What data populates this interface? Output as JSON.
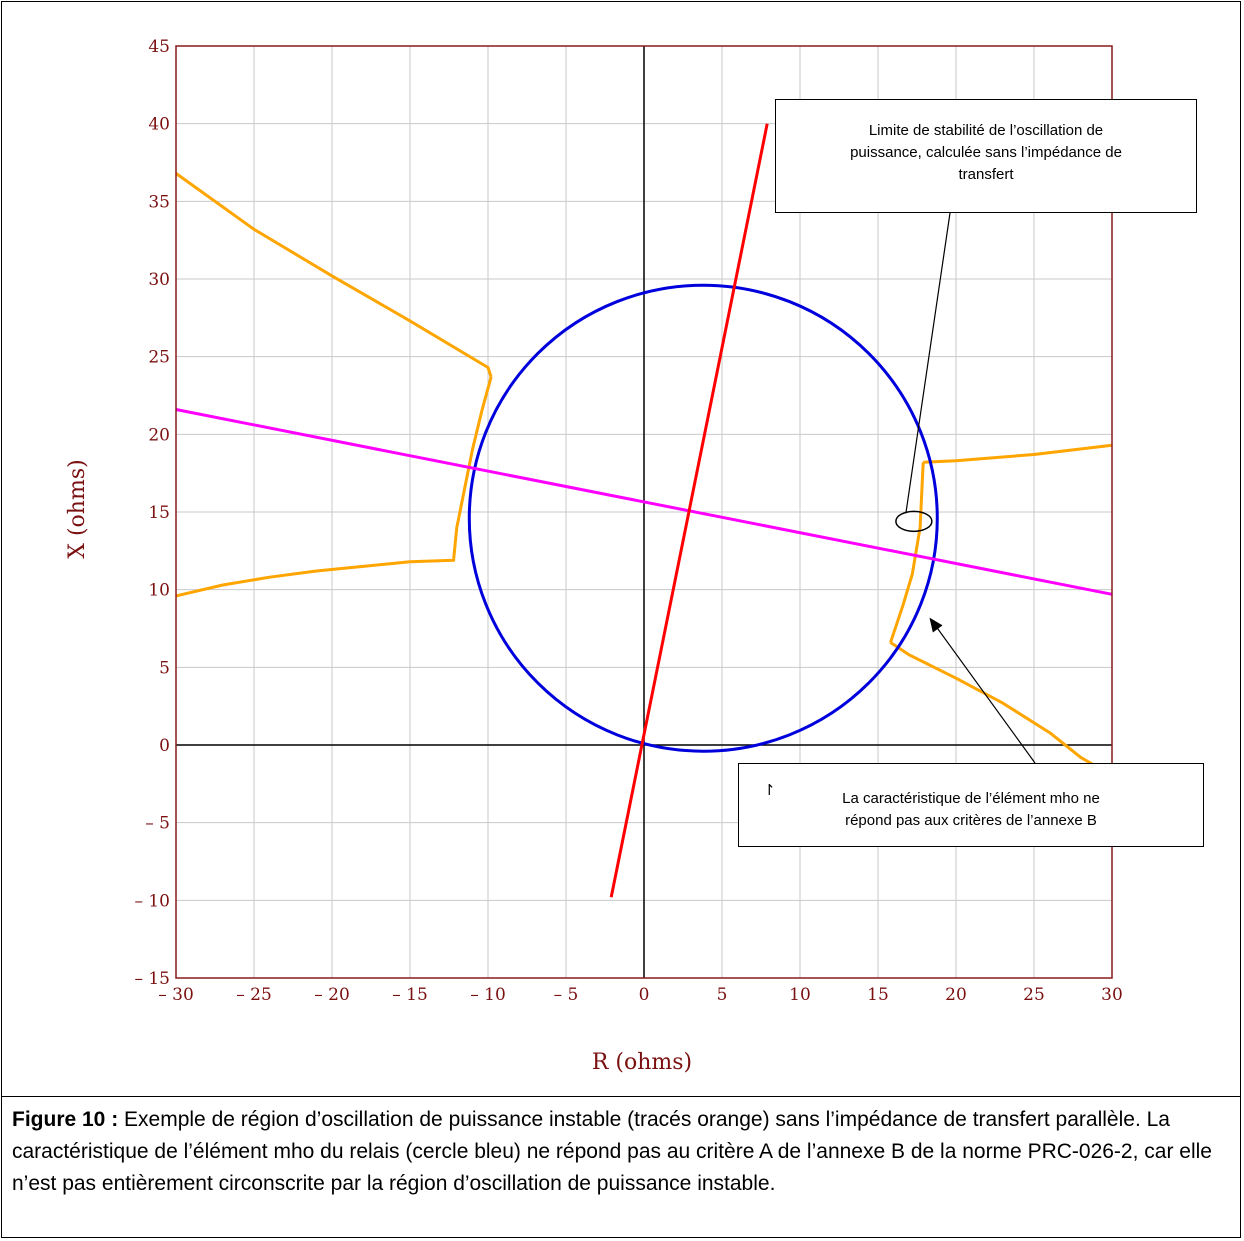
{
  "colors": {
    "plot_border": "#8b1a1a",
    "grid": "#c8c8c8",
    "axis_text": "#7a1010",
    "orange": "#ffa500",
    "blue": "#0000dd",
    "magenta": "#ff00ff",
    "red": "#ff0000"
  },
  "chart_data": {
    "type": "line",
    "xlabel": "R (ohms)",
    "ylabel": "X (ohms)",
    "xlim": [
      -30,
      30
    ],
    "ylim": [
      -15,
      45
    ],
    "xticks": [
      "– 30",
      "– 25",
      "– 20",
      "– 15",
      "– 10",
      "– 5",
      "0",
      "5",
      "10",
      "15",
      "20",
      "25",
      "30"
    ],
    "yticks": [
      "– 15",
      "– 10",
      "– 5",
      "0",
      "5",
      "10",
      "15",
      "20",
      "25",
      "30",
      "35",
      "40",
      "45"
    ],
    "grid": true,
    "series": [
      {
        "color": "orange",
        "kind": "line",
        "points": [
          [
            -30,
            36.8
          ],
          [
            -25,
            33.2
          ],
          [
            -20,
            30.2
          ],
          [
            -15,
            27.3
          ],
          [
            -10,
            24.3
          ],
          [
            -9.8,
            23.7
          ]
        ]
      },
      {
        "color": "orange",
        "kind": "line",
        "points": [
          [
            -9.8,
            23.7
          ],
          [
            -10.4,
            21.5
          ],
          [
            -11.0,
            19.0
          ],
          [
            -11.5,
            16.5
          ],
          [
            -12.0,
            14.0
          ],
          [
            -12.2,
            12.0
          ]
        ]
      },
      {
        "color": "orange",
        "kind": "line",
        "points": [
          [
            -30,
            9.6
          ],
          [
            -27,
            10.3
          ],
          [
            -24,
            10.8
          ],
          [
            -21,
            11.2
          ],
          [
            -18,
            11.5
          ],
          [
            -15,
            11.8
          ],
          [
            -12.2,
            11.9
          ],
          [
            -12.2,
            12.0
          ]
        ]
      },
      {
        "color": "orange",
        "kind": "line",
        "points": [
          [
            17.9,
            18.2
          ],
          [
            20,
            18.3
          ],
          [
            25,
            18.7
          ],
          [
            30,
            19.3
          ]
        ]
      },
      {
        "color": "orange",
        "kind": "line",
        "points": [
          [
            17.9,
            18.2
          ],
          [
            17.7,
            14.0
          ],
          [
            17.2,
            11.0
          ],
          [
            16.6,
            9.0
          ],
          [
            15.8,
            6.6
          ]
        ]
      },
      {
        "color": "orange",
        "kind": "line",
        "points": [
          [
            15.8,
            6.6
          ],
          [
            17,
            5.8
          ],
          [
            20,
            4.3
          ],
          [
            23,
            2.7
          ],
          [
            26,
            0.8
          ],
          [
            28,
            -0.8
          ],
          [
            29.2,
            -1.5
          ]
        ]
      },
      {
        "color": "blue",
        "kind": "circle",
        "center": [
          3.8,
          14.6
        ],
        "radius": 15.0
      },
      {
        "color": "magenta",
        "kind": "line",
        "points": [
          [
            -30,
            21.6
          ],
          [
            30,
            9.7
          ]
        ]
      },
      {
        "color": "red",
        "kind": "line",
        "points": [
          [
            -2.1,
            -9.8
          ],
          [
            7.9,
            40.0
          ]
        ]
      }
    ],
    "annotations": [
      {
        "id": "top",
        "target": [
          17.3,
          14.4
        ],
        "ellipse": true
      },
      {
        "id": "bottom",
        "target": [
          18.3,
          8.2
        ]
      }
    ]
  },
  "annotations": {
    "top_text_1": "Limite de stabilité de l’oscillation de",
    "top_text_2": "puissance, calculée sans l’impédance de",
    "top_text_3": "transfert",
    "bottom_text_1": "La caractéristique de l’élément mho ne",
    "bottom_text_2": "répond pas aux critères de l’annexe B",
    "bottom_artifact": "↾"
  },
  "caption": {
    "label": "Figure 10 :",
    "text": " Exemple de région d’oscillation de puissance instable (tracés orange) sans l’impédance de transfert parallèle. La caractéristique de l’élément mho du relais (cercle bleu) ne répond pas au critère A de l’annexe B de la norme PRC-026-2, car elle n’est pas entièrement circonscrite par la région d’oscillation de puissance instable."
  }
}
